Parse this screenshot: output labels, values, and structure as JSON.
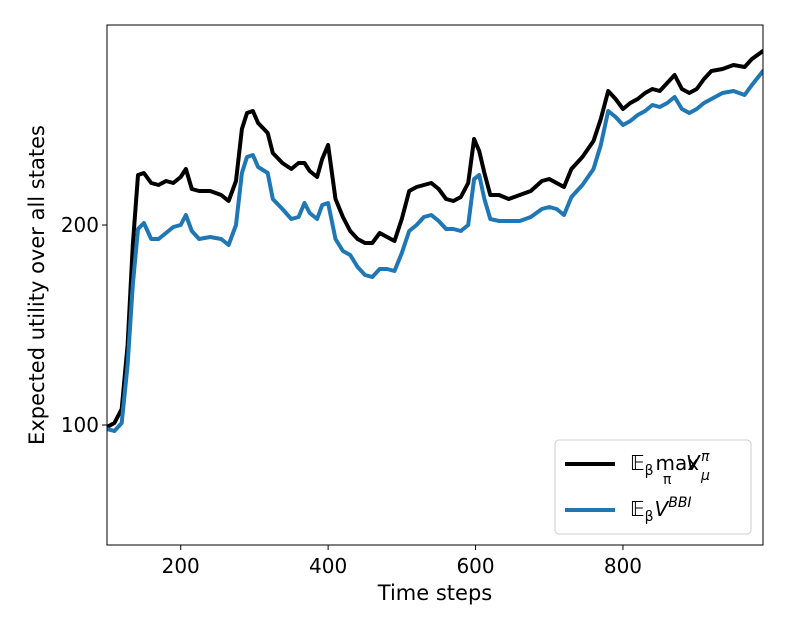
{
  "chart_data": {
    "type": "line",
    "xlabel": "Time steps",
    "ylabel": "Expected utility over all states",
    "xlim": [
      100,
      990
    ],
    "ylim": [
      40,
      300
    ],
    "xticks": [
      200,
      400,
      600,
      800
    ],
    "yticks": [
      100,
      200
    ],
    "legend_position": "lower-right",
    "grid": false,
    "series": [
      {
        "name": "𝔼β max π Vμπ",
        "legend": {
          "base": "𝔼",
          "base_sub": "β",
          "op": "max",
          "op_sub": "π",
          "var": "V",
          "var_sup": "π",
          "var_sub": "μ"
        },
        "color": "#000000",
        "points": [
          [
            100,
            99
          ],
          [
            110,
            101
          ],
          [
            120,
            108
          ],
          [
            128,
            140
          ],
          [
            135,
            190
          ],
          [
            142,
            225
          ],
          [
            150,
            226
          ],
          [
            160,
            221
          ],
          [
            170,
            220
          ],
          [
            180,
            222
          ],
          [
            190,
            221
          ],
          [
            200,
            224
          ],
          [
            207,
            228
          ],
          [
            215,
            218
          ],
          [
            225,
            217
          ],
          [
            240,
            217
          ],
          [
            255,
            215
          ],
          [
            265,
            212
          ],
          [
            275,
            222
          ],
          [
            283,
            248
          ],
          [
            290,
            256
          ],
          [
            298,
            257
          ],
          [
            305,
            251
          ],
          [
            318,
            246
          ],
          [
            325,
            236
          ],
          [
            338,
            231
          ],
          [
            350,
            228
          ],
          [
            360,
            231
          ],
          [
            368,
            231
          ],
          [
            375,
            227
          ],
          [
            385,
            224
          ],
          [
            392,
            233
          ],
          [
            400,
            240
          ],
          [
            410,
            213
          ],
          [
            420,
            204
          ],
          [
            430,
            197
          ],
          [
            440,
            193
          ],
          [
            450,
            191
          ],
          [
            460,
            191
          ],
          [
            470,
            196
          ],
          [
            480,
            194
          ],
          [
            490,
            192
          ],
          [
            500,
            203
          ],
          [
            510,
            217
          ],
          [
            520,
            219
          ],
          [
            530,
            220
          ],
          [
            540,
            221
          ],
          [
            550,
            218
          ],
          [
            560,
            213
          ],
          [
            570,
            212
          ],
          [
            580,
            214
          ],
          [
            590,
            221
          ],
          [
            598,
            243
          ],
          [
            605,
            237
          ],
          [
            612,
            226
          ],
          [
            620,
            215
          ],
          [
            632,
            215
          ],
          [
            645,
            213
          ],
          [
            660,
            215
          ],
          [
            675,
            217
          ],
          [
            690,
            222
          ],
          [
            700,
            223
          ],
          [
            710,
            221
          ],
          [
            720,
            219
          ],
          [
            730,
            228
          ],
          [
            745,
            234
          ],
          [
            760,
            242
          ],
          [
            770,
            253
          ],
          [
            780,
            267
          ],
          [
            790,
            263
          ],
          [
            800,
            258
          ],
          [
            810,
            261
          ],
          [
            820,
            263
          ],
          [
            830,
            266
          ],
          [
            840,
            268
          ],
          [
            850,
            267
          ],
          [
            860,
            271
          ],
          [
            870,
            275
          ],
          [
            880,
            268
          ],
          [
            890,
            266
          ],
          [
            900,
            268
          ],
          [
            910,
            273
          ],
          [
            920,
            277
          ],
          [
            935,
            278
          ],
          [
            950,
            280
          ],
          [
            965,
            279
          ],
          [
            975,
            283
          ],
          [
            990,
            287
          ]
        ]
      },
      {
        "name": "𝔼β V^BBI",
        "legend": {
          "base": "𝔼",
          "base_sub": "β",
          "var": "V",
          "var_sup": "BBI"
        },
        "color": "#1f77b4",
        "points": [
          [
            100,
            98
          ],
          [
            110,
            97
          ],
          [
            120,
            101
          ],
          [
            128,
            130
          ],
          [
            135,
            170
          ],
          [
            142,
            198
          ],
          [
            150,
            201
          ],
          [
            160,
            193
          ],
          [
            170,
            193
          ],
          [
            180,
            196
          ],
          [
            190,
            199
          ],
          [
            200,
            200
          ],
          [
            207,
            205
          ],
          [
            215,
            197
          ],
          [
            225,
            193
          ],
          [
            240,
            194
          ],
          [
            255,
            193
          ],
          [
            265,
            190
          ],
          [
            275,
            200
          ],
          [
            283,
            226
          ],
          [
            290,
            234
          ],
          [
            298,
            235
          ],
          [
            305,
            229
          ],
          [
            318,
            226
          ],
          [
            325,
            213
          ],
          [
            338,
            208
          ],
          [
            350,
            203
          ],
          [
            360,
            204
          ],
          [
            368,
            211
          ],
          [
            375,
            206
          ],
          [
            385,
            203
          ],
          [
            392,
            210
          ],
          [
            400,
            211
          ],
          [
            410,
            193
          ],
          [
            420,
            187
          ],
          [
            430,
            185
          ],
          [
            440,
            179
          ],
          [
            450,
            175
          ],
          [
            460,
            174
          ],
          [
            470,
            178
          ],
          [
            480,
            178
          ],
          [
            490,
            177
          ],
          [
            500,
            186
          ],
          [
            510,
            197
          ],
          [
            520,
            200
          ],
          [
            530,
            204
          ],
          [
            540,
            205
          ],
          [
            550,
            202
          ],
          [
            560,
            198
          ],
          [
            570,
            198
          ],
          [
            580,
            197
          ],
          [
            590,
            200
          ],
          [
            598,
            223
          ],
          [
            605,
            225
          ],
          [
            612,
            213
          ],
          [
            620,
            203
          ],
          [
            632,
            202
          ],
          [
            645,
            202
          ],
          [
            660,
            202
          ],
          [
            675,
            204
          ],
          [
            690,
            208
          ],
          [
            700,
            209
          ],
          [
            710,
            208
          ],
          [
            720,
            205
          ],
          [
            730,
            214
          ],
          [
            745,
            220
          ],
          [
            760,
            228
          ],
          [
            770,
            240
          ],
          [
            780,
            257
          ],
          [
            790,
            254
          ],
          [
            800,
            250
          ],
          [
            810,
            252
          ],
          [
            820,
            255
          ],
          [
            830,
            257
          ],
          [
            840,
            260
          ],
          [
            850,
            259
          ],
          [
            860,
            261
          ],
          [
            870,
            264
          ],
          [
            880,
            258
          ],
          [
            890,
            256
          ],
          [
            900,
            258
          ],
          [
            910,
            261
          ],
          [
            920,
            263
          ],
          [
            935,
            266
          ],
          [
            950,
            267
          ],
          [
            965,
            265
          ],
          [
            975,
            270
          ],
          [
            990,
            277
          ]
        ]
      }
    ]
  }
}
